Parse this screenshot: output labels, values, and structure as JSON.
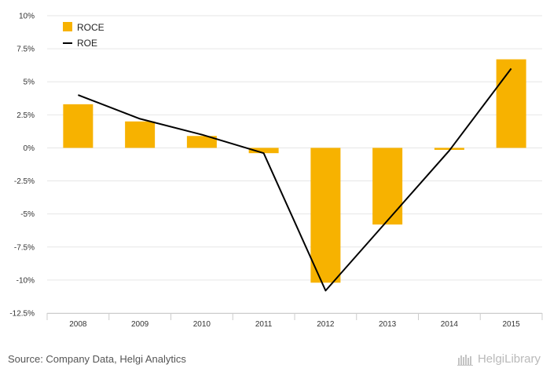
{
  "chart_data": {
    "type": "bar",
    "categories": [
      "2008",
      "2009",
      "2010",
      "2011",
      "2012",
      "2013",
      "2014",
      "2015"
    ],
    "series": [
      {
        "name": "ROCE",
        "type": "bar",
        "color": "#F7B200",
        "values": [
          3.3,
          2.0,
          0.9,
          -0.4,
          -10.2,
          -5.8,
          -0.15,
          6.7
        ]
      },
      {
        "name": "ROE",
        "type": "line",
        "color": "#000000",
        "values": [
          4.0,
          2.2,
          1.0,
          -0.4,
          -10.8,
          -5.5,
          -0.2,
          6.0
        ]
      }
    ],
    "ylim": [
      -12.5,
      10
    ],
    "yticks": [
      10,
      7.5,
      5,
      2.5,
      0,
      -2.5,
      -5,
      -7.5,
      -10,
      -12.5
    ],
    "ytick_labels": [
      "10%",
      "7.5%",
      "5%",
      "2.5%",
      "0%",
      "-2.5%",
      "-5%",
      "-7.5%",
      "-10%",
      "-12.5%"
    ],
    "grid": true,
    "legend_position": "top-left"
  },
  "footer": {
    "source": "Source: Company Data, Helgi Analytics",
    "brand": "HelgiLibrary"
  },
  "colors": {
    "grid": "#e6e6e6",
    "axis": "#cccccc"
  }
}
